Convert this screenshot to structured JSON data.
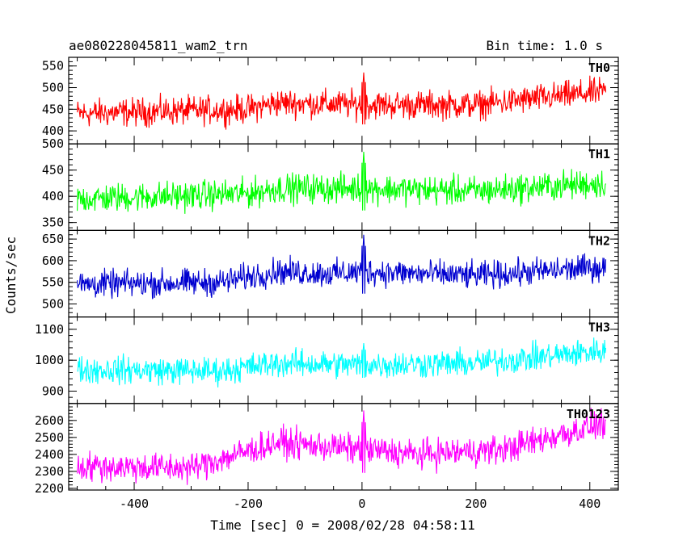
{
  "header": {
    "title": "ae080228045811_wam2_trn",
    "bin_time": "Bin time: 1.0 s"
  },
  "chart_data": {
    "type": "line",
    "ylabel": "Counts/sec",
    "xlabel": "Time [sec] 0 = 2008/02/28 04:58:11",
    "xlim": [
      -515,
      450
    ],
    "xticks": [
      -400,
      -200,
      0,
      200,
      400
    ],
    "x_range": [
      -500,
      428
    ],
    "panels": [
      {
        "name": "TH0",
        "color": "#ff0000",
        "ylim": [
          370,
          570
        ],
        "yticks": [
          400,
          450,
          500,
          550
        ],
        "trend": [
          [
            -500,
            440
          ],
          [
            -200,
            450
          ],
          [
            -150,
            465
          ],
          [
            0,
            460
          ],
          [
            200,
            460
          ],
          [
            420,
            490
          ]
        ],
        "noise": 28,
        "spike": 75
      },
      {
        "name": "TH1",
        "color": "#00ff00",
        "ylim": [
          335,
          500
        ],
        "yticks": [
          350,
          400,
          450,
          500
        ],
        "trend": [
          [
            -500,
            395
          ],
          [
            -200,
            405
          ],
          [
            -150,
            415
          ],
          [
            0,
            415
          ],
          [
            200,
            410
          ],
          [
            420,
            425
          ]
        ],
        "noise": 24,
        "spike": 70
      },
      {
        "name": "TH2",
        "color": "#0000d0",
        "ylim": [
          470,
          670
        ],
        "yticks": [
          500,
          550,
          600,
          650
        ],
        "trend": [
          [
            -500,
            545
          ],
          [
            -250,
            550
          ],
          [
            -150,
            575
          ],
          [
            -50,
            570
          ],
          [
            0,
            575
          ],
          [
            200,
            565
          ],
          [
            420,
            585
          ]
        ],
        "noise": 27,
        "spike": 85
      },
      {
        "name": "TH3",
        "color": "#00ffff",
        "ylim": [
          860,
          1140
        ],
        "yticks": [
          900,
          1000,
          1100
        ],
        "trend": [
          [
            -500,
            970
          ],
          [
            -250,
            965
          ],
          [
            -150,
            990
          ],
          [
            0,
            985
          ],
          [
            200,
            990
          ],
          [
            420,
            1030
          ]
        ],
        "noise": 38,
        "spike": 70
      },
      {
        "name": "TH0123",
        "color": "#ff00ff",
        "ylim": [
          2190,
          2700
        ],
        "yticks": [
          2200,
          2300,
          2400,
          2500,
          2600
        ],
        "trend": [
          [
            -500,
            2330
          ],
          [
            -300,
            2320
          ],
          [
            -150,
            2470
          ],
          [
            0,
            2430
          ],
          [
            100,
            2400
          ],
          [
            250,
            2430
          ],
          [
            420,
            2580
          ]
        ],
        "noise": 75,
        "spike": 230
      }
    ]
  }
}
